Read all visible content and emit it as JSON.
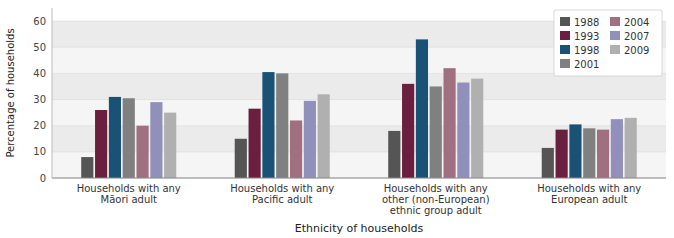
{
  "chart_data": {
    "type": "bar",
    "categories": [
      "Households with any\nMāori adult",
      "Households with any\nPacific adult",
      "Households with any\nother (non-European)\nethnic group adult",
      "Households with any\nEuropean adult"
    ],
    "series": [
      {
        "name": "1988",
        "color": "#555555",
        "values": [
          8,
          15,
          18,
          11.5
        ]
      },
      {
        "name": "1993",
        "color": "#6b1f3f",
        "values": [
          26,
          26.5,
          36,
          18.5
        ]
      },
      {
        "name": "1998",
        "color": "#1a5276",
        "values": [
          31,
          40.5,
          53,
          20.5
        ]
      },
      {
        "name": "2001",
        "color": "#808080",
        "values": [
          30.5,
          40,
          35,
          19
        ]
      },
      {
        "name": "2004",
        "color": "#a07080",
        "values": [
          20,
          22,
          42,
          18.5
        ]
      },
      {
        "name": "2007",
        "color": "#9090bb",
        "values": [
          29,
          29.5,
          36.5,
          22.5
        ]
      },
      {
        "name": "2009",
        "color": "#b0b0b0",
        "values": [
          25,
          32,
          38,
          23
        ]
      }
    ],
    "ylabel": "Percentage of households",
    "xlabel": "Ethnicity of households",
    "ylim": [
      0,
      65
    ],
    "yticks": [
      0,
      10,
      20,
      30,
      40,
      50,
      60
    ],
    "grid": true,
    "legend": "upper right"
  }
}
